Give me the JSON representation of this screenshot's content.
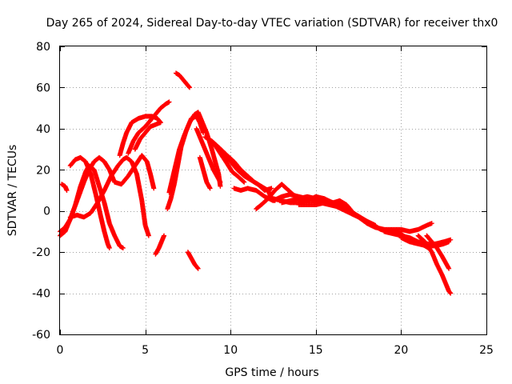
{
  "chart_data": {
    "type": "scatter",
    "title": "Day 265 of 2024, Sidereal Day-to-day VTEC variation (SDTVAR) for receiver thx0",
    "xlabel": "GPS time / hours",
    "ylabel": "SDTVAR / TECUs",
    "xlim": [
      0,
      25
    ],
    "ylim": [
      -60,
      80
    ],
    "xticks": [
      0,
      5,
      10,
      15,
      20,
      25
    ],
    "yticks": [
      -60,
      -40,
      -20,
      0,
      20,
      40,
      60,
      80
    ],
    "grid": true,
    "marker": "+",
    "color": "#ff0000",
    "series": [
      {
        "name": "arc1",
        "points": [
          [
            0.0,
            -10
          ],
          [
            0.3,
            -8
          ],
          [
            0.6,
            -4
          ],
          [
            0.9,
            3
          ],
          [
            1.2,
            12
          ],
          [
            1.5,
            19
          ],
          [
            1.7,
            22
          ],
          [
            2.0,
            20
          ],
          [
            2.3,
            12
          ],
          [
            2.6,
            4
          ],
          [
            2.9,
            -6
          ],
          [
            3.2,
            -12
          ],
          [
            3.5,
            -17
          ],
          [
            3.7,
            -18
          ]
        ]
      },
      {
        "name": "arc2",
        "points": [
          [
            0.0,
            -12
          ],
          [
            0.3,
            -10
          ],
          [
            0.6,
            -4
          ],
          [
            1.0,
            5
          ],
          [
            1.4,
            14
          ],
          [
            1.7,
            20
          ],
          [
            2.0,
            24
          ],
          [
            2.3,
            26
          ],
          [
            2.6,
            24
          ],
          [
            2.9,
            20
          ],
          [
            3.2,
            14
          ],
          [
            3.6,
            13
          ],
          [
            4.0,
            17
          ],
          [
            4.4,
            22
          ],
          [
            4.8,
            27
          ],
          [
            5.1,
            24
          ],
          [
            5.3,
            18
          ],
          [
            5.5,
            11
          ]
        ]
      },
      {
        "name": "arc3",
        "points": [
          [
            0.6,
            22
          ],
          [
            0.9,
            25
          ],
          [
            1.2,
            26
          ],
          [
            1.5,
            24
          ],
          [
            1.8,
            18
          ],
          [
            2.1,
            8
          ],
          [
            2.4,
            -3
          ],
          [
            2.6,
            -10
          ],
          [
            2.8,
            -16
          ],
          [
            2.9,
            -18
          ]
        ]
      },
      {
        "name": "arc4",
        "points": [
          [
            0.1,
            13
          ],
          [
            0.3,
            12
          ],
          [
            0.4,
            10
          ]
        ]
      },
      {
        "name": "arc5",
        "points": [
          [
            0.6,
            -3
          ],
          [
            1.0,
            -2
          ],
          [
            1.4,
            -3
          ],
          [
            1.8,
            -1
          ],
          [
            2.2,
            4
          ],
          [
            2.6,
            10
          ],
          [
            3.0,
            17
          ],
          [
            3.4,
            22
          ],
          [
            3.7,
            25
          ],
          [
            3.9,
            26
          ],
          [
            4.2,
            24
          ],
          [
            4.5,
            18
          ],
          [
            4.8,
            5
          ],
          [
            5.0,
            -7
          ],
          [
            5.2,
            -12
          ]
        ]
      },
      {
        "name": "arc6",
        "points": [
          [
            3.5,
            27
          ],
          [
            3.7,
            33
          ],
          [
            3.9,
            38
          ],
          [
            4.2,
            43
          ],
          [
            4.6,
            45
          ],
          [
            5.0,
            46
          ],
          [
            5.4,
            46
          ],
          [
            5.7,
            45
          ],
          [
            5.9,
            43
          ]
        ]
      },
      {
        "name": "arc7",
        "points": [
          [
            4.0,
            28
          ],
          [
            4.3,
            34
          ],
          [
            4.6,
            38
          ],
          [
            5.0,
            41
          ],
          [
            5.3,
            44
          ],
          [
            5.6,
            47
          ],
          [
            5.9,
            50
          ],
          [
            6.2,
            52
          ],
          [
            6.4,
            53
          ]
        ]
      },
      {
        "name": "arc8",
        "points": [
          [
            4.4,
            30
          ],
          [
            4.7,
            35
          ],
          [
            5.0,
            38
          ],
          [
            5.3,
            41
          ],
          [
            5.6,
            42
          ],
          [
            5.9,
            43
          ]
        ]
      },
      {
        "name": "arc9",
        "points": [
          [
            5.6,
            -21
          ],
          [
            5.8,
            -18
          ],
          [
            6.0,
            -14
          ],
          [
            6.1,
            -12
          ]
        ]
      },
      {
        "name": "arc10",
        "points": [
          [
            6.3,
            1
          ],
          [
            6.5,
            6
          ],
          [
            6.7,
            13
          ],
          [
            6.9,
            22
          ],
          [
            7.1,
            31
          ],
          [
            7.4,
            39
          ],
          [
            7.7,
            45
          ],
          [
            8.0,
            46
          ],
          [
            8.2,
            43
          ],
          [
            8.4,
            38
          ]
        ]
      },
      {
        "name": "arc11",
        "points": [
          [
            6.4,
            9
          ],
          [
            6.6,
            16
          ],
          [
            6.8,
            23
          ],
          [
            7.0,
            30
          ],
          [
            7.3,
            37
          ],
          [
            7.6,
            43
          ],
          [
            7.9,
            47
          ],
          [
            8.1,
            48
          ],
          [
            8.3,
            44
          ],
          [
            8.6,
            38
          ],
          [
            8.9,
            30
          ],
          [
            9.1,
            24
          ],
          [
            9.3,
            18
          ],
          [
            9.4,
            12
          ]
        ]
      },
      {
        "name": "arc12",
        "points": [
          [
            6.8,
            67
          ],
          [
            7.0,
            66
          ],
          [
            7.2,
            64
          ],
          [
            7.5,
            61
          ],
          [
            7.6,
            60
          ]
        ]
      },
      {
        "name": "arc13",
        "points": [
          [
            7.5,
            -20
          ],
          [
            7.7,
            -23
          ],
          [
            7.9,
            -26
          ],
          [
            8.1,
            -28
          ]
        ]
      },
      {
        "name": "arc14",
        "points": [
          [
            8.0,
            40
          ],
          [
            8.2,
            36
          ],
          [
            8.4,
            32
          ],
          [
            8.6,
            28
          ],
          [
            8.8,
            24
          ],
          [
            9.0,
            20
          ],
          [
            9.2,
            17
          ],
          [
            9.4,
            14
          ]
        ]
      },
      {
        "name": "arc15",
        "points": [
          [
            8.2,
            26
          ],
          [
            8.4,
            20
          ],
          [
            8.6,
            14
          ],
          [
            8.8,
            11
          ]
        ]
      },
      {
        "name": "arc16",
        "points": [
          [
            8.5,
            36
          ],
          [
            8.9,
            34
          ],
          [
            9.3,
            31
          ],
          [
            9.8,
            27
          ],
          [
            10.2,
            24
          ],
          [
            10.6,
            20
          ],
          [
            11.0,
            17
          ],
          [
            11.4,
            14
          ],
          [
            11.8,
            12
          ],
          [
            12.2,
            10
          ],
          [
            12.4,
            6
          ],
          [
            12.6,
            5
          ]
        ]
      },
      {
        "name": "arc17",
        "points": [
          [
            9.0,
            33
          ],
          [
            9.4,
            28
          ],
          [
            9.8,
            23
          ],
          [
            10.1,
            19
          ],
          [
            10.4,
            17
          ],
          [
            10.8,
            14
          ]
        ]
      },
      {
        "name": "arc18",
        "points": [
          [
            9.6,
            27
          ],
          [
            10.0,
            24
          ],
          [
            10.4,
            20
          ],
          [
            10.8,
            17
          ],
          [
            11.2,
            15
          ],
          [
            11.6,
            13
          ],
          [
            12.0,
            10
          ],
          [
            12.4,
            11
          ]
        ]
      },
      {
        "name": "arc19",
        "points": [
          [
            10.2,
            11
          ],
          [
            10.6,
            10
          ],
          [
            11.0,
            11
          ],
          [
            11.5,
            10
          ],
          [
            12.0,
            7
          ],
          [
            12.5,
            5
          ],
          [
            13.0,
            7
          ],
          [
            13.5,
            8
          ],
          [
            14.0,
            7
          ],
          [
            14.5,
            6
          ],
          [
            15.0,
            6
          ],
          [
            15.5,
            5
          ],
          [
            16.0,
            4
          ],
          [
            16.5,
            3
          ],
          [
            17.0,
            1
          ]
        ]
      },
      {
        "name": "arc20",
        "points": [
          [
            11.5,
            1
          ],
          [
            11.8,
            3
          ],
          [
            12.2,
            6
          ],
          [
            12.6,
            10
          ],
          [
            13.0,
            13
          ],
          [
            13.4,
            10
          ],
          [
            13.8,
            7
          ],
          [
            14.3,
            5
          ],
          [
            14.8,
            5
          ],
          [
            15.3,
            4
          ],
          [
            15.8,
            3
          ],
          [
            16.3,
            2
          ]
        ]
      },
      {
        "name": "arc21",
        "points": [
          [
            12.5,
            6
          ],
          [
            13.0,
            5
          ],
          [
            13.5,
            4
          ],
          [
            14.0,
            4
          ],
          [
            14.5,
            5
          ],
          [
            15.0,
            7
          ],
          [
            15.5,
            6
          ],
          [
            16.0,
            4
          ],
          [
            16.5,
            2
          ],
          [
            17.0,
            0
          ],
          [
            17.5,
            -3
          ],
          [
            18.0,
            -5
          ],
          [
            18.5,
            -7
          ]
        ]
      },
      {
        "name": "arc22",
        "points": [
          [
            13.0,
            4
          ],
          [
            13.5,
            5
          ],
          [
            14.0,
            6
          ],
          [
            14.5,
            7
          ],
          [
            15.0,
            6
          ],
          [
            15.5,
            5
          ],
          [
            16.0,
            4
          ],
          [
            16.4,
            5
          ],
          [
            16.8,
            3
          ],
          [
            17.2,
            -1
          ],
          [
            17.6,
            -3
          ],
          [
            18.0,
            -5
          ],
          [
            18.4,
            -7
          ],
          [
            18.8,
            -9
          ],
          [
            19.2,
            -10
          ]
        ]
      },
      {
        "name": "arc23",
        "points": [
          [
            14.0,
            3
          ],
          [
            14.5,
            3
          ],
          [
            15.0,
            3
          ],
          [
            15.5,
            4
          ],
          [
            16.0,
            3
          ],
          [
            16.5,
            1
          ],
          [
            17.0,
            -1
          ],
          [
            17.5,
            -3
          ],
          [
            18.0,
            -6
          ],
          [
            18.5,
            -8
          ],
          [
            19.0,
            -9
          ],
          [
            19.5,
            -10
          ],
          [
            20.0,
            -11
          ]
        ]
      },
      {
        "name": "arc24",
        "points": [
          [
            18.0,
            -6
          ],
          [
            18.5,
            -8
          ],
          [
            19.0,
            -9
          ],
          [
            19.5,
            -9
          ],
          [
            20.0,
            -9
          ],
          [
            20.5,
            -10
          ],
          [
            21.0,
            -9
          ],
          [
            21.5,
            -7
          ],
          [
            21.8,
            -6
          ]
        ]
      },
      {
        "name": "arc25",
        "points": [
          [
            19.0,
            -10
          ],
          [
            19.5,
            -11
          ],
          [
            20.0,
            -12
          ],
          [
            20.5,
            -13
          ],
          [
            21.0,
            -15
          ],
          [
            21.5,
            -16
          ],
          [
            22.0,
            -16
          ],
          [
            22.5,
            -15
          ],
          [
            22.9,
            -14
          ]
        ]
      },
      {
        "name": "arc26",
        "points": [
          [
            20.0,
            -13
          ],
          [
            20.5,
            -15
          ],
          [
            21.0,
            -16
          ],
          [
            21.5,
            -17
          ],
          [
            22.0,
            -17
          ],
          [
            22.5,
            -16
          ],
          [
            22.8,
            -15
          ]
        ]
      },
      {
        "name": "arc27",
        "points": [
          [
            19.8,
            -10
          ],
          [
            20.3,
            -13
          ],
          [
            20.8,
            -15
          ],
          [
            21.2,
            -16
          ],
          [
            21.6,
            -18
          ]
        ]
      },
      {
        "name": "arc28",
        "points": [
          [
            21.5,
            -12
          ],
          [
            21.8,
            -15
          ],
          [
            22.1,
            -18
          ],
          [
            22.4,
            -22
          ],
          [
            22.6,
            -25
          ],
          [
            22.8,
            -28
          ]
        ]
      },
      {
        "name": "arc29",
        "points": [
          [
            21.0,
            -12
          ],
          [
            21.4,
            -15
          ],
          [
            21.8,
            -20
          ],
          [
            22.1,
            -26
          ],
          [
            22.4,
            -31
          ],
          [
            22.6,
            -35
          ],
          [
            22.8,
            -39
          ],
          [
            22.9,
            -40
          ]
        ]
      }
    ]
  }
}
